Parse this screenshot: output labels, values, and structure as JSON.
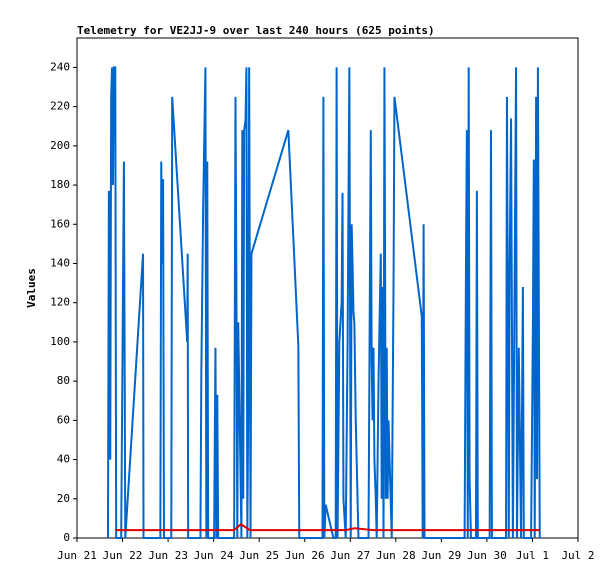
{
  "chart_data": {
    "type": "line",
    "title": "Telemetry for VE2JJ-9 over last 240 hours (625 points)",
    "y_label": "Values",
    "xlim": [
      21,
      32
    ],
    "xticks": [
      {
        "value": 21,
        "label": "Jun 21"
      },
      {
        "value": 22,
        "label": "Jun 22"
      },
      {
        "value": 23,
        "label": "Jun 23"
      },
      {
        "value": 24,
        "label": "Jun 24"
      },
      {
        "value": 25,
        "label": "Jun 25"
      },
      {
        "value": 26,
        "label": "Jun 26"
      },
      {
        "value": 27,
        "label": "Jun 27"
      },
      {
        "value": 28,
        "label": "Jun 28"
      },
      {
        "value": 29,
        "label": "Jun 29"
      },
      {
        "value": 30,
        "label": "Jun 30"
      },
      {
        "value": 31,
        "label": "Jul 1"
      },
      {
        "value": 32,
        "label": "Jul 2"
      }
    ],
    "ylim": [
      0,
      255
    ],
    "yticks": [
      0,
      20,
      40,
      60,
      80,
      100,
      120,
      140,
      160,
      180,
      200,
      220,
      240
    ],
    "grid": false,
    "series": [
      {
        "color": "#0066cc",
        "x": [
          21.68,
          21.7,
          21.73,
          21.75,
          21.77,
          21.79,
          21.81,
          21.84,
          21.86,
          21.97,
          22.03,
          22.06,
          22.45,
          22.46,
          22.83,
          22.85,
          22.87,
          22.89,
          22.91,
          23.07,
          23.09,
          23.42,
          23.43,
          23.44,
          23.71,
          23.73,
          23.77,
          23.82,
          23.84,
          23.86,
          23.88,
          24.01,
          24.04,
          24.06,
          24.08,
          24.1,
          24.45,
          24.48,
          24.5,
          24.52,
          24.54,
          24.56,
          24.61,
          24.63,
          24.65,
          24.67,
          24.7,
          24.72,
          24.74,
          24.76,
          24.78,
          24.81,
          24.83,
          25.64,
          25.86,
          25.88,
          26.39,
          26.41,
          26.43,
          26.46,
          26.63,
          26.68,
          26.7,
          26.72,
          26.76,
          26.81,
          26.83,
          26.85,
          26.9,
          26.94,
          26.98,
          27.01,
          27.03,
          27.05,
          27.07,
          27.09,
          27.12,
          27.18,
          27.4,
          27.45,
          27.47,
          27.49,
          27.51,
          27.53,
          27.56,
          27.58,
          27.62,
          27.67,
          27.69,
          27.71,
          27.73,
          27.75,
          27.78,
          27.8,
          27.82,
          27.84,
          27.91,
          27.95,
          27.97,
          28.57,
          28.59,
          28.61,
          28.63,
          29.51,
          29.54,
          29.56,
          29.58,
          29.6,
          29.62,
          29.65,
          29.76,
          29.78,
          29.8,
          30.06,
          30.09,
          30.11,
          30.42,
          30.44,
          30.48,
          30.5,
          30.53,
          30.57,
          30.64,
          30.66,
          30.7,
          30.75,
          30.79,
          30.81,
          30.97,
          31.01,
          31.03,
          31.05,
          31.08,
          31.1,
          31.12,
          31.14,
          31.16
        ],
        "values": [
          0,
          177,
          40,
          225,
          240,
          180,
          240,
          240,
          0,
          0,
          192,
          0,
          145,
          0,
          0,
          192,
          140,
          183,
          0,
          0,
          225,
          100,
          145,
          0,
          0,
          85,
          168,
          240,
          0,
          192,
          0,
          0,
          97,
          0,
          73,
          0,
          0,
          225,
          130,
          0,
          110,
          80,
          0,
          208,
          20,
          208,
          213,
          240,
          0,
          70,
          240,
          0,
          145,
          208,
          98,
          0,
          0,
          225,
          0,
          17,
          0,
          0,
          240,
          0,
          100,
          120,
          176,
          20,
          0,
          97,
          240,
          0,
          160,
          140,
          115,
          110,
          60,
          0,
          0,
          208,
          90,
          60,
          97,
          40,
          20,
          0,
          80,
          145,
          20,
          128,
          0,
          240,
          20,
          97,
          20,
          60,
          0,
          130,
          225,
          113,
          0,
          160,
          0,
          0,
          138,
          208,
          0,
          240,
          30,
          0,
          0,
          177,
          0,
          0,
          208,
          0,
          0,
          225,
          0,
          140,
          214,
          0,
          240,
          0,
          97,
          0,
          128,
          0,
          0,
          110,
          193,
          0,
          225,
          30,
          240,
          120,
          0
        ]
      },
      {
        "color": "#dd0000",
        "x": [
          21.84,
          24.45,
          24.6,
          24.8,
          26.9,
          27.1,
          27.5,
          31.16
        ],
        "values": [
          4,
          4,
          7,
          4,
          4,
          5,
          4,
          4
        ]
      }
    ]
  }
}
